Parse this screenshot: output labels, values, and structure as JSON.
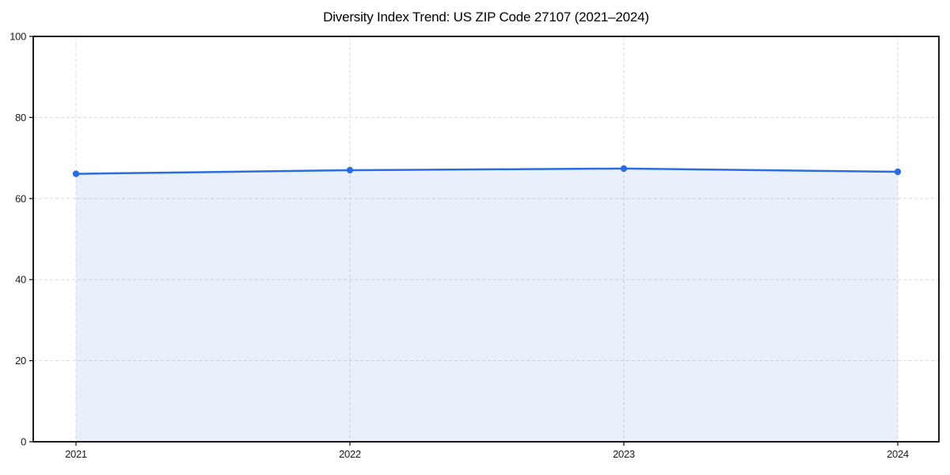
{
  "figure": {
    "background": "#ffffff"
  },
  "chart_data": {
    "type": "line",
    "title": "Diversity Index Trend: US ZIP Code 27107 (2021–2024)",
    "x": [
      "2021",
      "2022",
      "2023",
      "2024"
    ],
    "series": [
      {
        "name": "Diversity Index",
        "values": [
          66.1,
          67.0,
          67.4,
          66.6
        ]
      }
    ],
    "xlabel": "",
    "ylabel": "",
    "ylim": [
      0,
      100
    ],
    "yticks": [
      0,
      20,
      40,
      60,
      80,
      100
    ],
    "grid": true,
    "grid_style": "dashed",
    "legend": "none",
    "area_fill": true,
    "marker": "circle",
    "colors": {
      "line": "#2b6de0",
      "marker": "#2b6de0",
      "fill": "rgba(43,109,224,0.10)",
      "grid": "#d9d9d9",
      "axis": "#000000",
      "tick_text": "#1a1a1a",
      "title_text": "#000000"
    }
  }
}
